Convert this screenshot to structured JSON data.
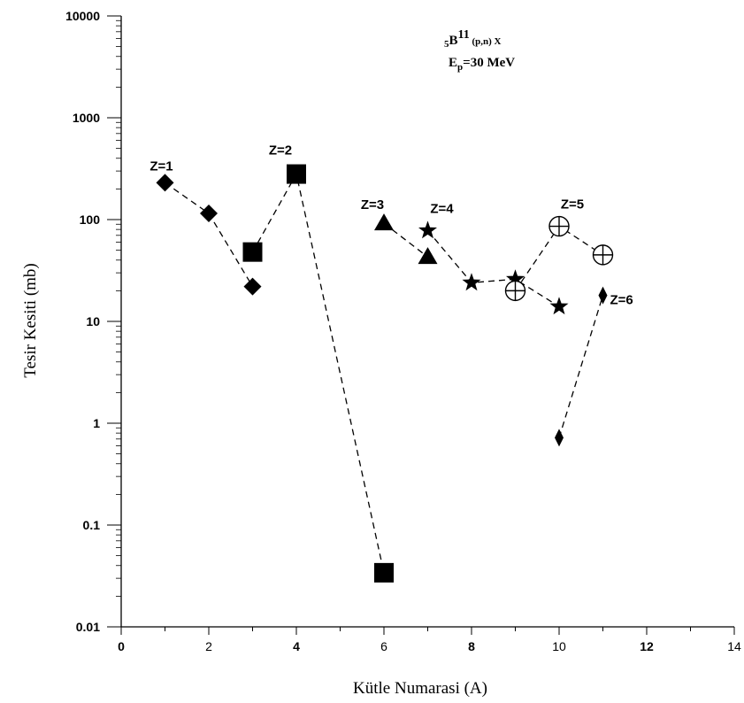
{
  "chart_data": {
    "type": "scatter",
    "yscale": "log",
    "xlim": [
      0,
      14
    ],
    "ylim": [
      0.01,
      10000
    ],
    "xlabel": "Kütle Numarasi (A)",
    "ylabel": "Tesir Kesiti (mb)",
    "x_ticks": [
      "0",
      "2",
      "4",
      "6",
      "8",
      "10",
      "12",
      "14"
    ],
    "y_ticks": [
      "0.01",
      "0.1",
      "1",
      "10",
      "100",
      "1000",
      "10000"
    ],
    "annotation": {
      "line1": {
        "pre_sub": "5",
        "base": "B",
        "sup": "11",
        "rest": " (p,n) X"
      },
      "line2": {
        "base": "E",
        "sub": "p",
        "rest": "=30 MeV"
      }
    },
    "series": [
      {
        "label": "Z=1",
        "marker": "diamond",
        "points": [
          [
            1,
            230
          ],
          [
            2,
            115
          ],
          [
            3,
            22
          ]
        ]
      },
      {
        "label": "Z=2",
        "marker": "square",
        "points": [
          [
            3,
            48
          ],
          [
            4,
            280
          ],
          [
            6,
            0.034
          ]
        ]
      },
      {
        "label": "Z=3",
        "marker": "triangle",
        "points": [
          [
            6,
            92
          ],
          [
            7,
            43
          ]
        ]
      },
      {
        "label": "Z=4",
        "marker": "star",
        "points": [
          [
            7,
            78
          ],
          [
            8,
            24
          ],
          [
            9,
            26
          ],
          [
            10,
            14
          ]
        ]
      },
      {
        "label": "Z=5",
        "marker": "circle-plus",
        "points": [
          [
            9,
            20
          ],
          [
            10,
            86
          ],
          [
            11,
            45
          ]
        ]
      },
      {
        "label": "Z=6",
        "marker": "thin-diamond",
        "points": [
          [
            10,
            0.72
          ],
          [
            11,
            18
          ]
        ]
      }
    ]
  }
}
